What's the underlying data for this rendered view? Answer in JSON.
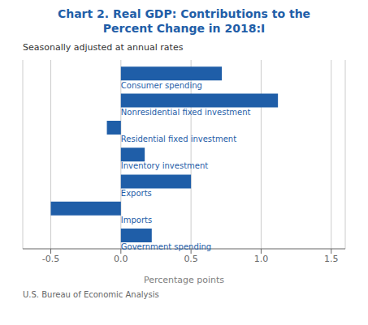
{
  "chart_data": {
    "type": "bar",
    "orientation": "horizontal",
    "title": "Chart 2. Real GDP: Contributions to the\nPercent Change in 2018:I",
    "subtitle": "Seasonally adjusted at annual rates",
    "xlabel": "Percentage points",
    "annotations": [
      "U.S. Bureau of Economic Analysis"
    ],
    "categories": [
      "Consumer spending",
      "Nonresidential fixed investment",
      "Residential fixed investment",
      "Inventory investment",
      "Exports",
      "Imports",
      "Government spending"
    ],
    "values": [
      0.72,
      1.12,
      -0.1,
      0.17,
      0.5,
      -0.5,
      0.22
    ],
    "color": "#1F5EA8",
    "xlim": [
      -0.7,
      1.6
    ],
    "xticks": [
      -0.5,
      {
        "value": 0,
        "label": "0.0"
      },
      0.5,
      {
        "value": 1,
        "label": "1.0"
      },
      1.5
    ],
    "grid": true,
    "tick_labels": "x"
  }
}
